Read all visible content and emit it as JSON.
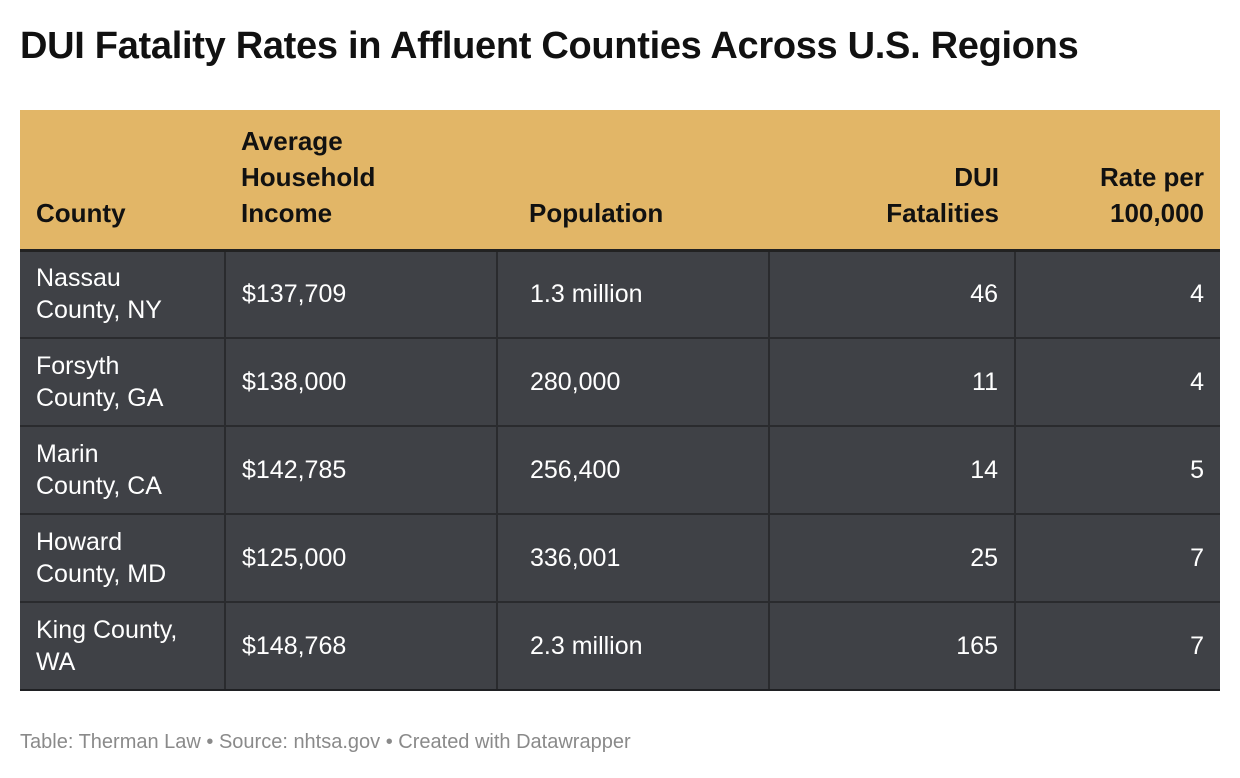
{
  "title": "DUI Fatality Rates in Affluent Counties Across U.S. Regions",
  "chart_data": {
    "type": "table",
    "columns": [
      "County",
      "Average Household Income",
      "Population",
      "DUI Fatalities",
      "Rate per 100,000"
    ],
    "header_lines": [
      [
        "County"
      ],
      [
        "Average",
        "Household",
        "Income"
      ],
      [
        "Population"
      ],
      [
        "DUI",
        "Fatalities"
      ],
      [
        "Rate per",
        "100,000"
      ]
    ],
    "rows": [
      {
        "county_lines": [
          "Nassau",
          "County, NY"
        ],
        "income": "$137,709",
        "population": "1.3 million",
        "fatalities": 46,
        "rate": 4
      },
      {
        "county_lines": [
          "Forsyth",
          "County, GA"
        ],
        "income": "$138,000",
        "population": "280,000",
        "fatalities": 11,
        "rate": 4
      },
      {
        "county_lines": [
          "Marin",
          "County, CA"
        ],
        "income": "$142,785",
        "population": "256,400",
        "fatalities": 14,
        "rate": 5
      },
      {
        "county_lines": [
          "Howard",
          "County, MD"
        ],
        "income": "$125,000",
        "population": "336,001",
        "fatalities": 25,
        "rate": 7
      },
      {
        "county_lines": [
          "King County,",
          "WA"
        ],
        "income": "$148,768",
        "population": "2.3 million",
        "fatalities": 165,
        "rate": 7
      }
    ]
  },
  "footer": "Table: Therman Law • Source: nhtsa.gov • Created with Datawrapper",
  "colors": {
    "header_bg": "#e2b667",
    "row_bg": "#3f4146",
    "footer_text": "#8a8a8a"
  }
}
